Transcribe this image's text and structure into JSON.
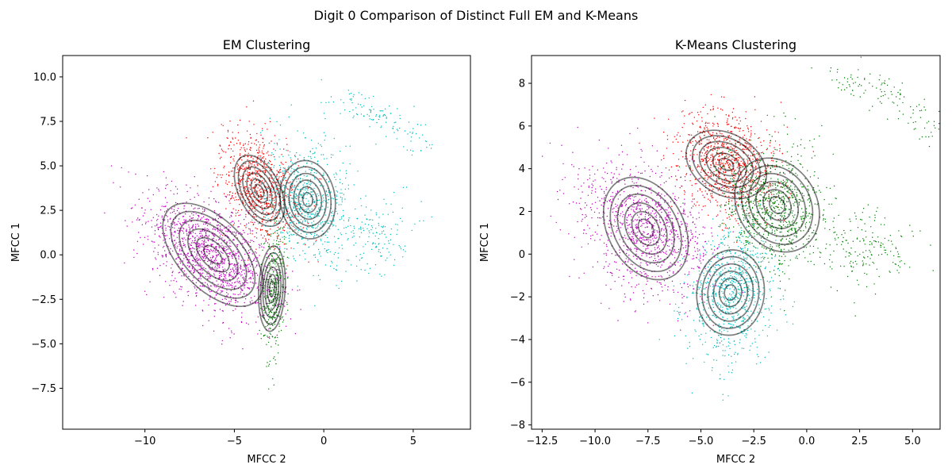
{
  "figure": {
    "suptitle": "Digit 0 Comparison of Distinct Full EM and K-Means"
  },
  "chart_data": [
    {
      "type": "scatter",
      "title": "EM Clustering",
      "xlabel": "MFCC 2",
      "ylabel": "MFCC 1",
      "xlim": [
        -14.6,
        8.2
      ],
      "ylim": [
        -9.8,
        11.2
      ],
      "xticks": [
        -10,
        -5,
        0,
        5
      ],
      "xtick_labels": [
        "−10",
        "−5",
        "0",
        "5"
      ],
      "yticks": [
        -7.5,
        -5.0,
        -2.5,
        0.0,
        2.5,
        5.0,
        7.5,
        10.0
      ],
      "ytick_labels": [
        "−7.5",
        "−5.0",
        "−2.5",
        "0.0",
        "2.5",
        "5.0",
        "7.5",
        "10.0"
      ],
      "grid": false,
      "clusters": [
        {
          "color": "#bf00bf",
          "center": [
            -6.2,
            0.0
          ],
          "spread": [
            1.9,
            1.7
          ],
          "rho": -0.55,
          "points": 1400
        },
        {
          "color": "#ff0000",
          "center": [
            -3.6,
            3.9
          ],
          "spread": [
            1.1,
            1.5
          ],
          "rho": -0.35,
          "points": 800
        },
        {
          "color": "#00bfbf",
          "center": [
            -1.0,
            3.0
          ],
          "spread": [
            1.2,
            1.7
          ],
          "rho": -0.2,
          "points": 700
        },
        {
          "color": "#008000",
          "center": [
            -2.8,
            -2.0
          ],
          "spread": [
            0.35,
            1.9
          ],
          "rho": 0.1,
          "points": 350
        }
      ],
      "extra_points": [
        {
          "color": "#00bfbf",
          "arc_from": [
            0.5,
            8.6
          ],
          "arc_to": [
            5.8,
            6.0
          ],
          "points": 120
        },
        {
          "color": "#00bfbf",
          "center": [
            3.0,
            1.0
          ],
          "spread": [
            1.2,
            1.2
          ],
          "points": 160
        }
      ],
      "contours": [
        {
          "center": [
            -6.2,
            0.0
          ],
          "sigma": [
            2.8,
            2.9
          ],
          "rho": -0.55,
          "levels": [
            0.18,
            0.33,
            0.5,
            0.67,
            0.84,
            1.0
          ]
        },
        {
          "center": [
            -3.6,
            3.6
          ],
          "sigma": [
            1.4,
            2.0
          ],
          "rho": -0.45,
          "levels": [
            0.18,
            0.33,
            0.5,
            0.67,
            0.84,
            1.0
          ]
        },
        {
          "center": [
            -0.9,
            3.1
          ],
          "sigma": [
            1.55,
            2.2
          ],
          "rho": -0.1,
          "levels": [
            0.18,
            0.33,
            0.5,
            0.67,
            0.84,
            1.0
          ]
        },
        {
          "center": [
            -2.9,
            -1.9
          ],
          "sigma": [
            0.75,
            2.4
          ],
          "rho": 0.15,
          "levels": [
            0.18,
            0.33,
            0.5,
            0.67,
            0.84,
            1.0
          ]
        }
      ]
    },
    {
      "type": "scatter",
      "title": "K-Means Clustering",
      "xlabel": "MFCC 2",
      "ylabel": "MFCC 1",
      "xlim": [
        -13.0,
        6.3
      ],
      "ylim": [
        -8.2,
        9.3
      ],
      "xticks": [
        -12.5,
        -10.0,
        -7.5,
        -5.0,
        -2.5,
        0.0,
        2.5,
        5.0
      ],
      "xtick_labels": [
        "−12.5",
        "−10.0",
        "−7.5",
        "−5.0",
        "−2.5",
        "0.0",
        "2.5",
        "5.0"
      ],
      "yticks": [
        -8,
        -6,
        -4,
        -2,
        0,
        2,
        4,
        6,
        8
      ],
      "ytick_labels": [
        "−8",
        "−6",
        "−4",
        "−2",
        "0",
        "2",
        "4",
        "6",
        "8"
      ],
      "grid": false,
      "clusters": [
        {
          "color": "#bf00bf",
          "center": [
            -7.6,
            1.2
          ],
          "spread": [
            1.6,
            1.6
          ],
          "rho": -0.3,
          "points": 1100
        },
        {
          "color": "#ff0000",
          "center": [
            -3.8,
            4.3
          ],
          "spread": [
            1.2,
            1.2
          ],
          "rho": -0.2,
          "points": 900
        },
        {
          "color": "#008000",
          "center": [
            -1.5,
            2.2
          ],
          "spread": [
            1.2,
            1.4
          ],
          "rho": -0.15,
          "points": 900
        },
        {
          "color": "#00bfbf",
          "center": [
            -3.6,
            -1.8
          ],
          "spread": [
            1.0,
            1.6
          ],
          "rho": 0.05,
          "points": 800
        }
      ],
      "extra_points": [
        {
          "color": "#008000",
          "arc_from": [
            1.0,
            8.5
          ],
          "arc_to": [
            6.0,
            5.8
          ],
          "points": 120
        },
        {
          "color": "#008000",
          "center": [
            2.8,
            0.2
          ],
          "spread": [
            1.1,
            1.0
          ],
          "points": 170
        }
      ],
      "contours": [
        {
          "center": [
            -7.6,
            1.2
          ],
          "sigma": [
            2.0,
            2.4
          ],
          "rho": -0.3,
          "levels": [
            0.18,
            0.33,
            0.5,
            0.67,
            0.84,
            1.0
          ]
        },
        {
          "center": [
            -3.8,
            4.2
          ],
          "sigma": [
            1.9,
            1.6
          ],
          "rho": -0.3,
          "levels": [
            0.18,
            0.33,
            0.5,
            0.67,
            0.84,
            1.0
          ]
        },
        {
          "center": [
            -1.4,
            2.3
          ],
          "sigma": [
            2.0,
            2.2
          ],
          "rho": -0.2,
          "levels": [
            0.18,
            0.33,
            0.5,
            0.67,
            0.84,
            1.0
          ]
        },
        {
          "center": [
            -3.6,
            -1.8
          ],
          "sigma": [
            1.6,
            2.0
          ],
          "rho": 0.05,
          "levels": [
            0.18,
            0.33,
            0.5,
            0.67,
            0.84,
            1.0
          ]
        }
      ]
    }
  ]
}
